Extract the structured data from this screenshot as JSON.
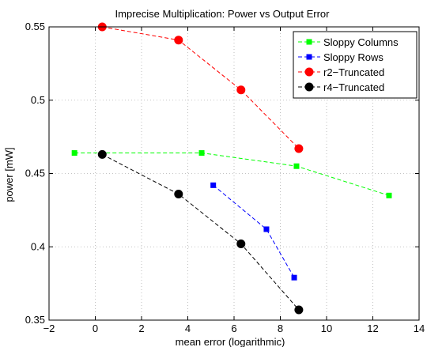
{
  "chart_data": {
    "type": "line",
    "title": "Imprecise Multiplication: Power vs Output Error",
    "xlabel": "mean error (logarithmic)",
    "ylabel": "power [mW]",
    "xlim": [
      -2,
      14
    ],
    "ylim": [
      0.35,
      0.55
    ],
    "xticks": [
      -2,
      0,
      2,
      4,
      6,
      8,
      10,
      12,
      14
    ],
    "yticks": [
      0.35,
      0.4,
      0.45,
      0.5,
      0.55
    ],
    "grid": true,
    "legend_position": "top-right",
    "series": [
      {
        "name": "Sloppy Columns",
        "color": "#00ff00",
        "marker": "square",
        "x": [
          -0.9,
          4.6,
          8.7,
          12.7
        ],
        "y": [
          0.464,
          0.464,
          0.455,
          0.435
        ]
      },
      {
        "name": "Sloppy Rows",
        "color": "#0000ff",
        "marker": "square",
        "x": [
          5.1,
          7.4,
          8.6
        ],
        "y": [
          0.442,
          0.412,
          0.379
        ]
      },
      {
        "name": "r2−Truncated",
        "color": "#ff0000",
        "marker": "circle",
        "x": [
          0.3,
          3.6,
          6.3,
          8.8
        ],
        "y": [
          0.55,
          0.541,
          0.507,
          0.467
        ]
      },
      {
        "name": "r4−Truncated",
        "color": "#000000",
        "marker": "circle",
        "x": [
          0.3,
          3.6,
          6.3,
          8.8
        ],
        "y": [
          0.463,
          0.436,
          0.402,
          0.357
        ]
      }
    ]
  }
}
